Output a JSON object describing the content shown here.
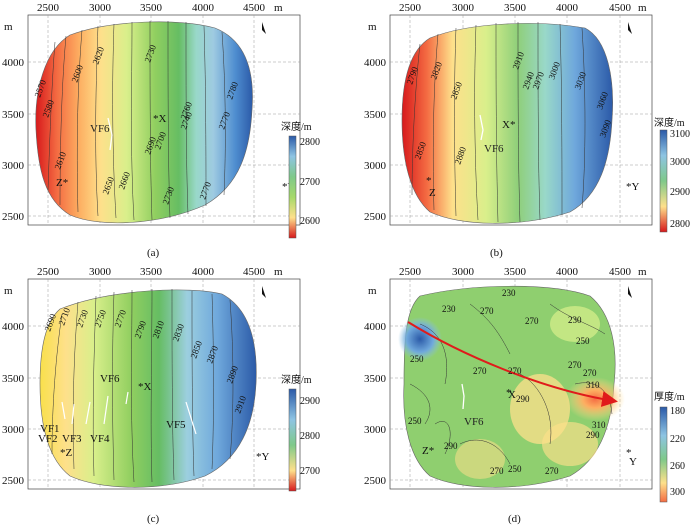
{
  "panels": [
    {
      "id": "a",
      "caption": "(a)",
      "x_ticks": [
        "2500",
        "3000",
        "3500",
        "4000",
        "4500"
      ],
      "y_ticks": [
        "4000",
        "3500",
        "3000",
        "2500"
      ],
      "unit": "m",
      "legend": {
        "title": "深度/m",
        "labels": [
          "2800",
          "2700",
          "2600"
        ]
      },
      "points": {
        "X": "X",
        "Y": "Y",
        "Z": "Z"
      },
      "faults": [
        "VF6"
      ],
      "contours": [
        "2570",
        "2580",
        "2590",
        "2600",
        "2610",
        "2610",
        "2620",
        "2650",
        "2660",
        "2690",
        "2700",
        "2730",
        "2730",
        "2740",
        "2760",
        "2770",
        "2770",
        "2780"
      ],
      "colors": [
        "#d7191c",
        "#f46d43",
        "#fdae61",
        "#fee08b",
        "#d9ef8b",
        "#a6d96a",
        "#66bd63",
        "#8fcfa8",
        "#99d3e4",
        "#4f94cd",
        "#2b5aa8"
      ]
    },
    {
      "id": "b",
      "caption": "(b)",
      "x_ticks": [
        "2500",
        "3000",
        "3500",
        "4000",
        "4500"
      ],
      "y_ticks": [
        "4000",
        "3500",
        "3000",
        "2500"
      ],
      "unit": "m",
      "legend": {
        "title": "深度/m",
        "labels": [
          "3100",
          "3000",
          "2900",
          "2800"
        ]
      },
      "points": {
        "X": "X",
        "Y": "Y",
        "Z": "Z"
      },
      "faults": [
        "VF6"
      ],
      "contours": [
        "2790",
        "2820",
        "2850",
        "2850",
        "2880",
        "2910",
        "2940",
        "2970",
        "3000",
        "3030",
        "3060",
        "3090"
      ]
    },
    {
      "id": "c",
      "caption": "(c)",
      "x_ticks": [
        "2500",
        "3000",
        "3500",
        "4000",
        "4500"
      ],
      "y_ticks": [
        "4000",
        "3500",
        "3000",
        "2500"
      ],
      "unit": "m",
      "legend": {
        "title": "深度/m",
        "labels": [
          "2900",
          "2800",
          "2700"
        ]
      },
      "points": {
        "X": "X",
        "Y": "Y",
        "Z": "Z"
      },
      "faults": [
        "VF1",
        "VF2",
        "VF3",
        "VF4",
        "VF5",
        "VF6"
      ],
      "contours": [
        "2690",
        "2710",
        "2730",
        "2750",
        "2770",
        "2790",
        "2810",
        "2830",
        "2850",
        "2870",
        "2890",
        "2910"
      ]
    },
    {
      "id": "d",
      "caption": "(d)",
      "x_ticks": [
        "2500",
        "3000",
        "3500",
        "4000",
        "4500"
      ],
      "y_ticks": [
        "4000",
        "3500",
        "3000",
        "2500"
      ],
      "unit": "m",
      "legend": {
        "title": "厚度/m",
        "labels": [
          "180",
          "220",
          "260",
          "300"
        ]
      },
      "points": {
        "X": "X",
        "Y": "Y",
        "Z": "Z"
      },
      "faults": [
        "VF6"
      ],
      "contours": [
        "230",
        "230",
        "250",
        "250",
        "250",
        "250",
        "270",
        "270",
        "270",
        "270",
        "270",
        "270",
        "270",
        "270",
        "290",
        "290",
        "290",
        "310",
        "310",
        "230"
      ]
    }
  ]
}
